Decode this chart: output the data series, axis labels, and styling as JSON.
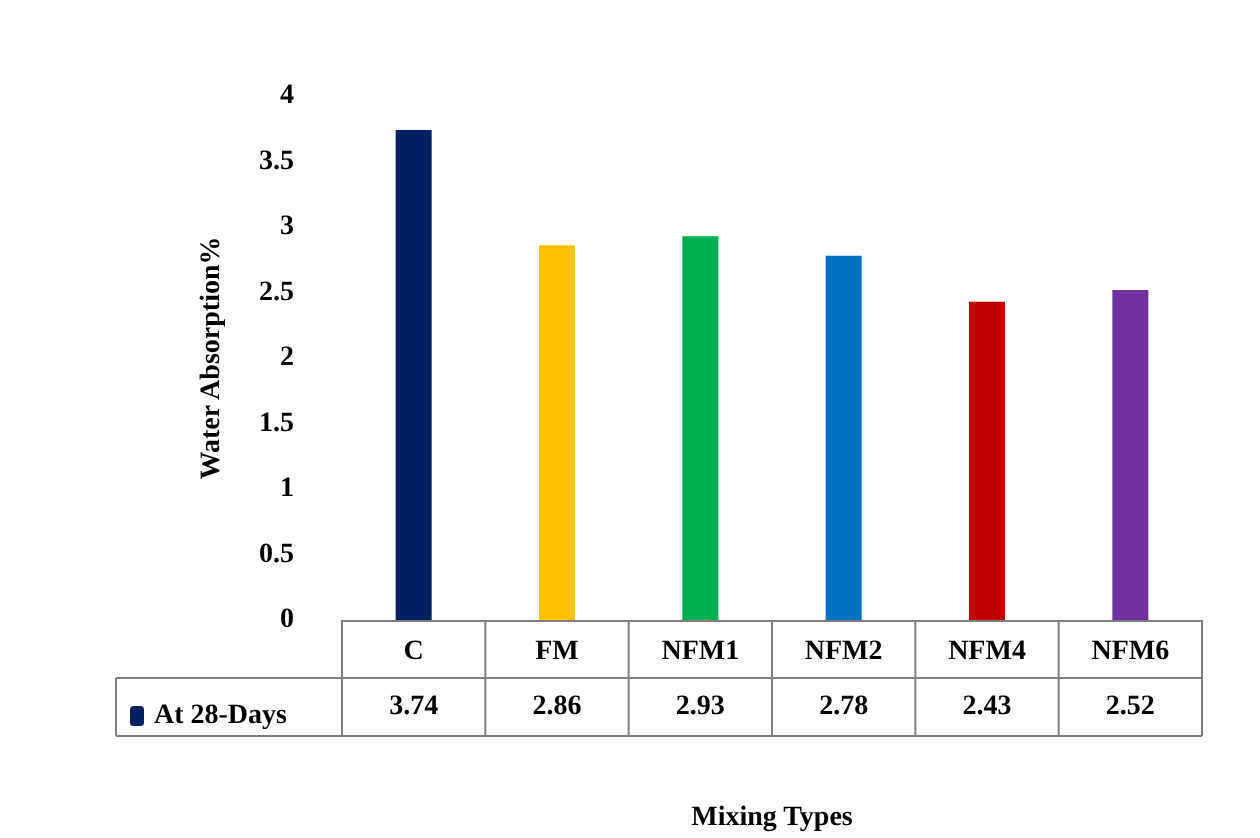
{
  "chart_data": {
    "type": "bar",
    "xlabel": "Mixing Types",
    "ylabel": "Water Absorption%",
    "categories": [
      "C",
      "FM",
      "NFM1",
      "NFM2",
      "NFM4",
      "NFM6"
    ],
    "series": [
      {
        "name": "At 28-Days",
        "color": "#002060",
        "colors": [
          "#002060",
          "#ffc000",
          "#00b050",
          "#0070c0",
          "#c00000",
          "#7030a0"
        ],
        "values": [
          3.74,
          2.86,
          2.93,
          2.78,
          2.43,
          2.52
        ]
      }
    ],
    "ylim": [
      0,
      4
    ],
    "yticks": [
      0,
      0.5,
      1,
      1.5,
      2,
      2.5,
      3,
      3.5,
      4
    ],
    "grid": false,
    "legend": "bottom left",
    "data_labels": true
  }
}
